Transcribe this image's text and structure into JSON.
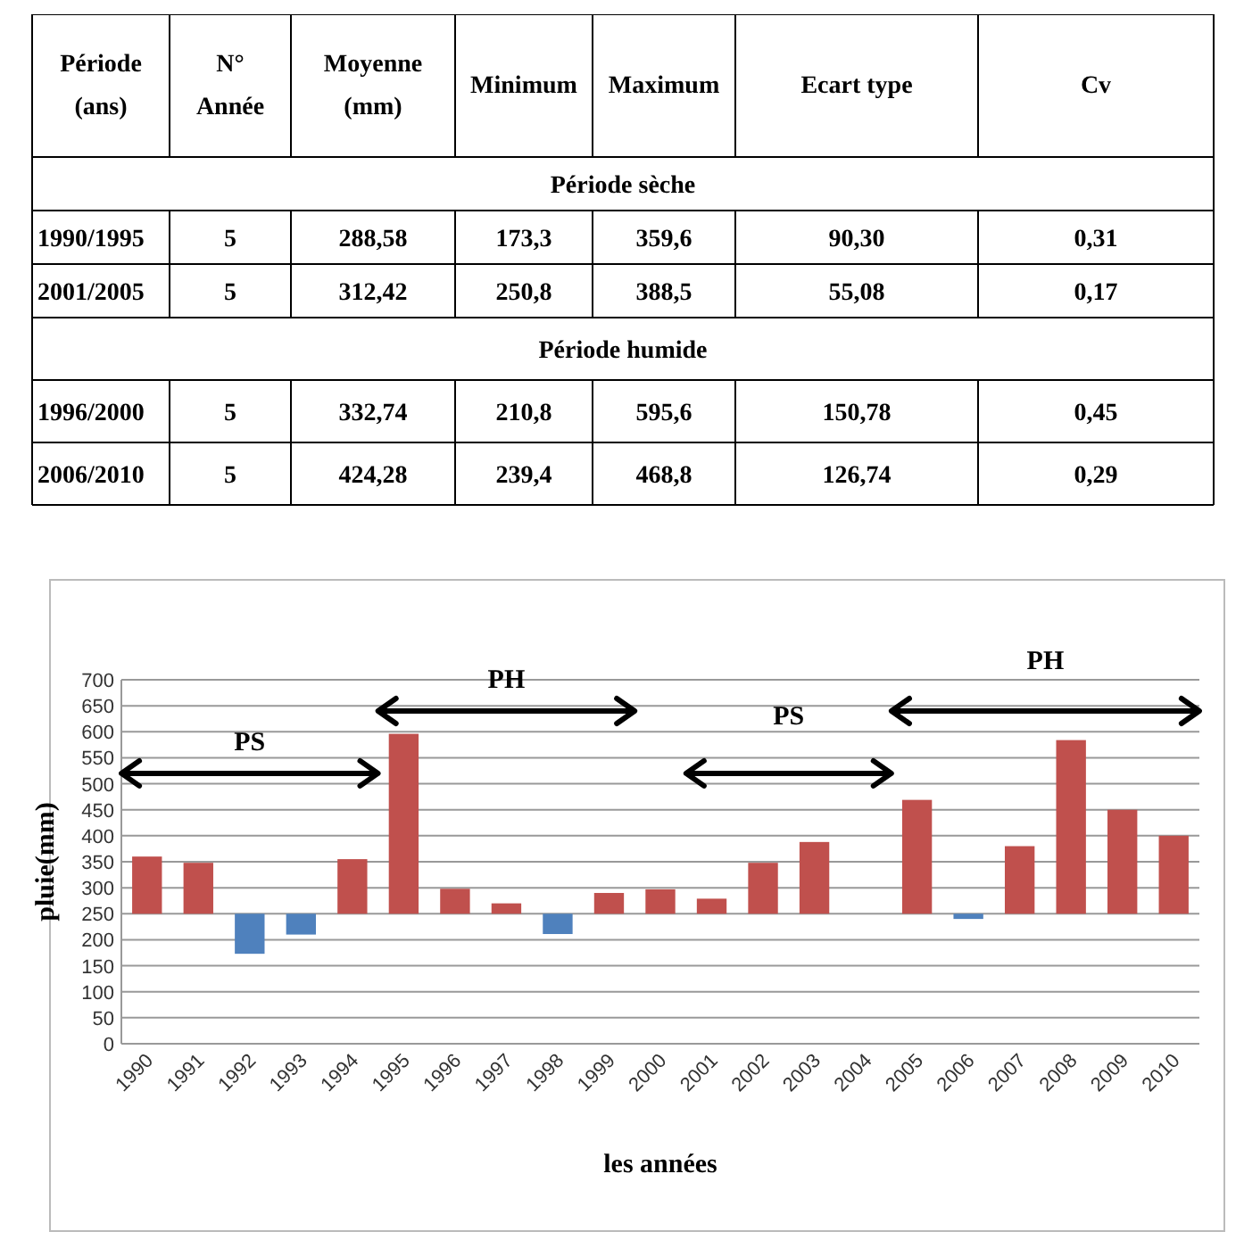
{
  "chart_data": [
    {
      "type": "other",
      "categories": [
        "Période\n(ans)",
        "N°\nAnnée",
        "Moyenne\n(mm)",
        "Minimum",
        "Maximum",
        "Ecart type",
        "Cv"
      ],
      "y_categories": [
        "1990/1995",
        "2001/2005",
        "1996/2000",
        "2006/2010"
      ],
      "cell_labels": [
        [
          "5",
          "288,58",
          "173,3",
          "359,6",
          "90,30",
          "0,31"
        ],
        [
          "5",
          "312,42",
          "250,8",
          "388,5",
          "55,08",
          "0,17"
        ],
        [
          "5",
          "332,74",
          "210,8",
          "595,6",
          "150,78",
          "0,45"
        ],
        [
          "5",
          "424,28",
          "239,4",
          "468,8",
          "126,74",
          "0,29"
        ]
      ],
      "annotations": [
        "Période sèche",
        "Période humide"
      ]
    },
    {
      "type": "bar",
      "categories": [
        "1990",
        "1991",
        "1992",
        "1993",
        "1994",
        "1995",
        "1996",
        "1997",
        "1998",
        "1999",
        "2000",
        "2001",
        "2002",
        "2003",
        "2004",
        "2005",
        "2006",
        "2007",
        "2008",
        "2009",
        "2010"
      ],
      "values": [
        110,
        98,
        -77,
        -40,
        105,
        346,
        48,
        20,
        -39,
        40,
        47,
        29,
        98,
        138,
        null,
        219,
        -10,
        130,
        334,
        200,
        150
      ],
      "base": [
        250,
        250,
        250,
        250,
        250,
        250,
        250,
        250,
        250,
        250,
        250,
        250,
        250,
        250,
        null,
        250,
        250,
        250,
        250,
        250,
        250
      ],
      "colors": [
        "#c0504d",
        "#c0504d",
        "#4f81bd",
        "#4f81bd",
        "#c0504d",
        "#c0504d",
        "#c0504d",
        "#c0504d",
        "#4f81bd",
        "#c0504d",
        "#c0504d",
        "#c0504d",
        "#c0504d",
        "#c0504d",
        null,
        "#c0504d",
        "#4f81bd",
        "#c0504d",
        "#c0504d",
        "#c0504d",
        "#c0504d"
      ],
      "ylim": [
        0,
        700
      ],
      "yticks": [
        0,
        50,
        100,
        150,
        200,
        250,
        300,
        350,
        400,
        450,
        500,
        550,
        600,
        650,
        700
      ],
      "grid": "y",
      "xlabel": "les années",
      "ylabel": "pluie(mm)",
      "annotations": [
        "PS",
        "PH",
        "PS",
        "PH"
      ]
    }
  ]
}
